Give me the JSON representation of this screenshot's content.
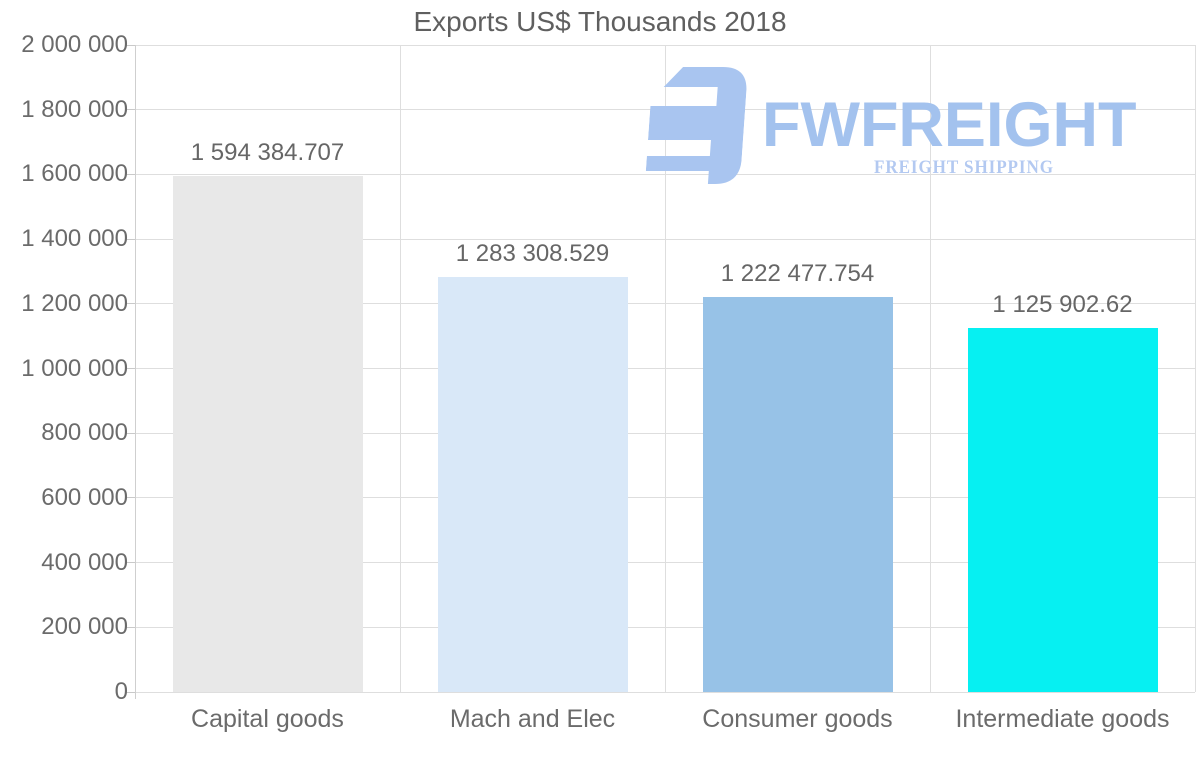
{
  "chart_data": {
    "type": "bar",
    "title": "Exports US$ Thousands 2018",
    "categories": [
      "Capital goods",
      "Mach and Elec",
      "Consumer goods",
      "Intermediate goods"
    ],
    "values": [
      1594384.707,
      1283308.529,
      1222477.754,
      1125902.62
    ],
    "value_labels": [
      "1 594 384.707",
      "1 283 308.529",
      "1 222 477.754",
      "1 125 902.62"
    ],
    "bar_colors": [
      "#e8e8e8",
      "#d9e8f8",
      "#97c2e7",
      "#06f0f2"
    ],
    "xlabel": "",
    "ylabel": "",
    "ylim": [
      0,
      2000000
    ],
    "ytick_step": 200000,
    "ytick_labels": [
      "0",
      "200 000",
      "400 000",
      "600 000",
      "800 000",
      "1 000 000",
      "1 200 000",
      "1 400 000",
      "1 600 000",
      "1 800 000",
      "2 000 000"
    ],
    "grid": true,
    "legend": "none"
  },
  "logo": {
    "text": "FWFREIGHT",
    "subtext": "FREIGHT SHIPPING",
    "text_color": "#a3c2ee",
    "subtext_color": "#b3c9f1",
    "icon_color": "#a9c5f0"
  }
}
